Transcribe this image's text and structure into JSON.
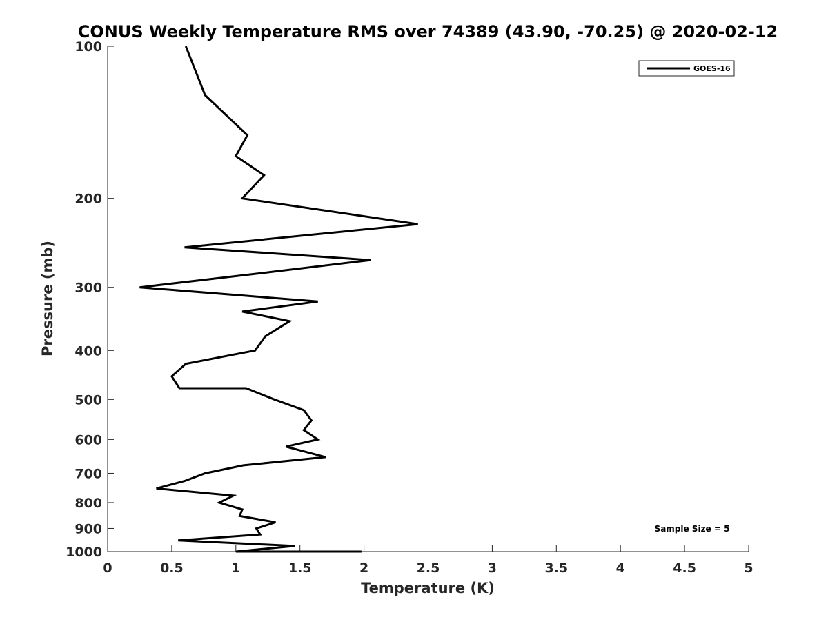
{
  "chart_data": {
    "type": "line",
    "title": "CONUS Weekly Temperature RMS over 74389 (43.90, -70.25) @ 2020-02-12",
    "xlabel": "Temperature (K)",
    "ylabel": "Pressure (mb)",
    "xlim": [
      0,
      5
    ],
    "ylim": [
      100,
      1000
    ],
    "y_scale": "log",
    "y_reversed": true,
    "x_ticks": [
      0,
      0.5,
      1,
      1.5,
      2,
      2.5,
      3,
      3.5,
      4,
      4.5,
      5
    ],
    "x_tick_labels": [
      "0",
      "0.5",
      "1",
      "1.5",
      "2",
      "2.5",
      "3",
      "3.5",
      "4",
      "4.5",
      "5"
    ],
    "y_ticks": [
      100,
      200,
      300,
      400,
      500,
      600,
      700,
      800,
      900,
      1000
    ],
    "y_tick_labels": [
      "100",
      "200",
      "300",
      "400",
      "500",
      "600",
      "700",
      "800",
      "900",
      "1000"
    ],
    "grid": false,
    "legend_position": "top-right",
    "annotation": "Sample Size = 5",
    "series": [
      {
        "name": "GOES-16",
        "color": "#000000",
        "x": [
          0.61,
          0.76,
          1.09,
          1.0,
          1.22,
          1.05,
          2.42,
          0.6,
          2.05,
          1.26,
          0.25,
          1.64,
          1.05,
          1.42,
          1.23,
          1.15,
          0.61,
          0.5,
          0.56,
          1.08,
          1.3,
          1.53,
          1.59,
          1.53,
          1.64,
          1.39,
          1.7,
          1.06,
          0.76,
          0.6,
          0.38,
          0.98,
          0.87,
          1.05,
          1.03,
          1.31,
          1.16,
          1.19,
          0.55,
          1.46,
          1.0,
          1.08,
          1.65,
          1.56,
          1.98
        ],
        "y": [
          100,
          125,
          150,
          165,
          180,
          200,
          225,
          250,
          265,
          280,
          300,
          320,
          335,
          350,
          375,
          400,
          425,
          450,
          475,
          475,
          500,
          525,
          550,
          575,
          600,
          620,
          650,
          675,
          700,
          725,
          750,
          775,
          800,
          825,
          850,
          875,
          900,
          925,
          950,
          975,
          1000,
          1000,
          1000,
          1000,
          1000
        ]
      }
    ]
  }
}
